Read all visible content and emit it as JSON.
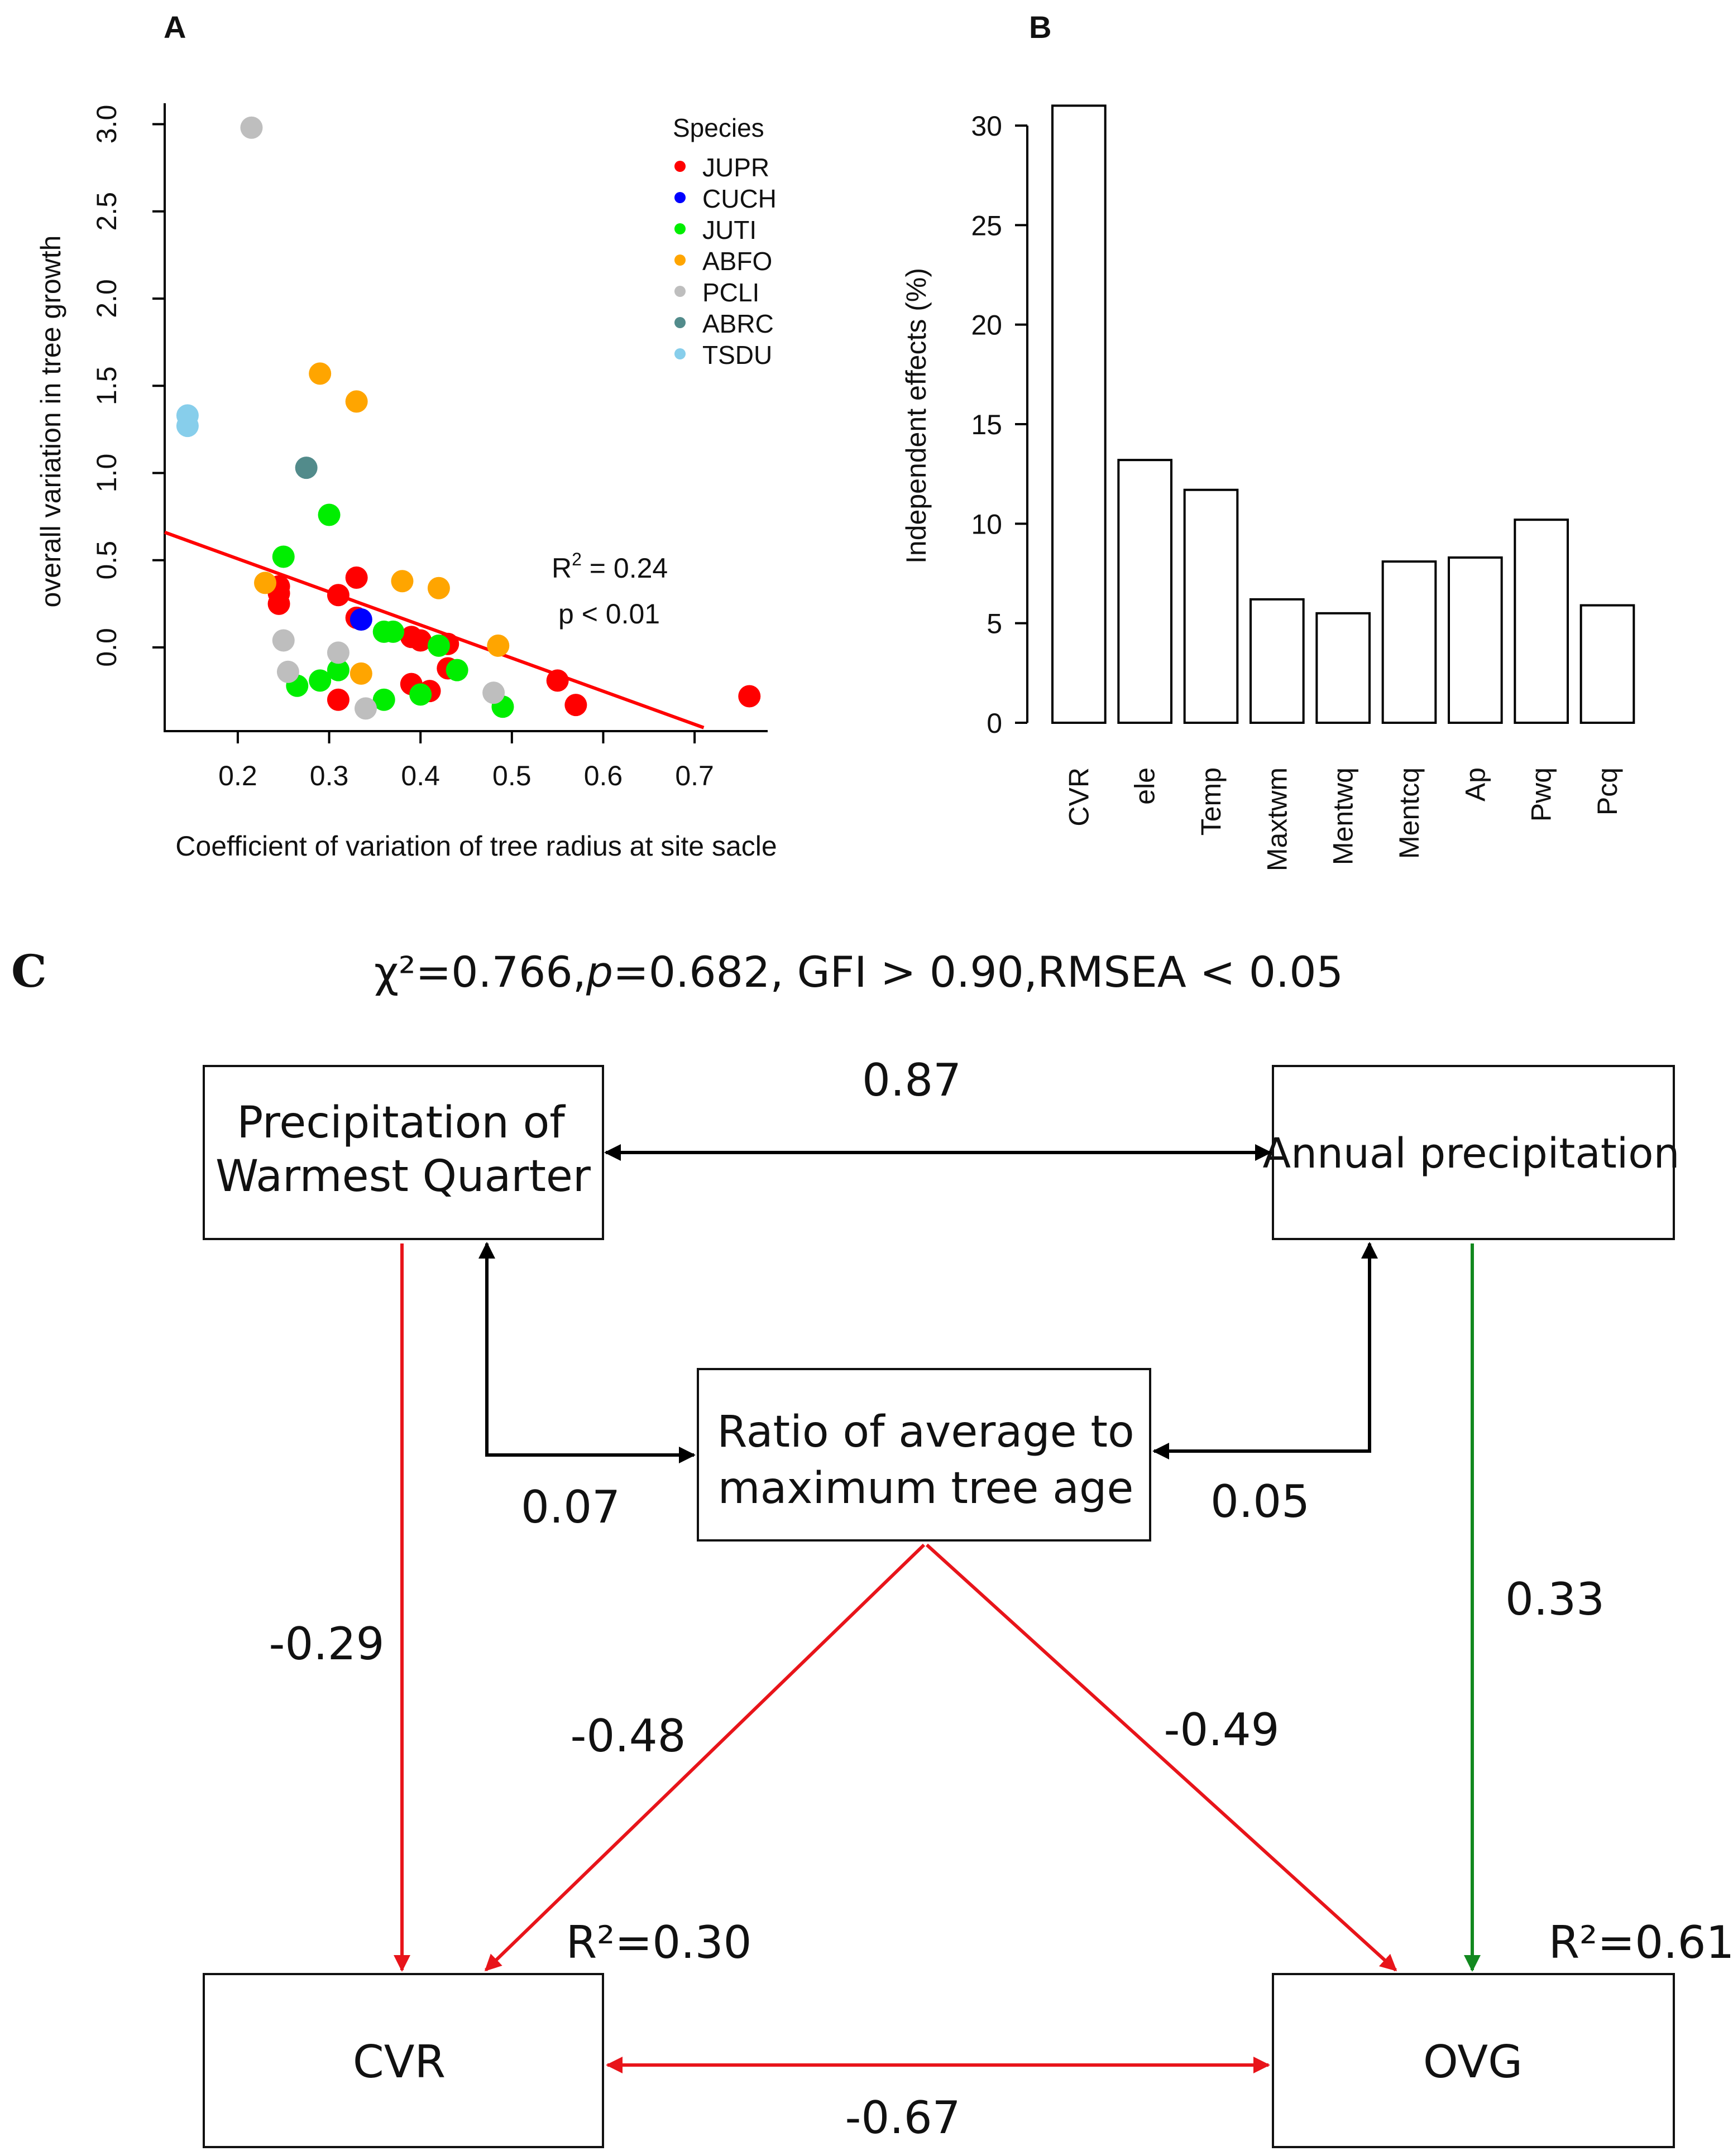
{
  "panel_labels": {
    "a": "A",
    "b": "B",
    "c": "C"
  },
  "chart_data": [
    {
      "type": "scatter",
      "panel": "A",
      "xlabel": "Coefficient of variation of tree radius at site sacle",
      "ylabel": "overall variation in tree growth",
      "xlim": [
        0.12,
        0.78
      ],
      "ylim": [
        -0.48,
        3.12
      ],
      "xticks": [
        0.2,
        0.3,
        0.4,
        0.5,
        0.6,
        0.7
      ],
      "yticks": [
        0.0,
        0.5,
        1.0,
        1.5,
        2.0,
        2.5,
        3.0
      ],
      "xtick_labels": [
        "0.2",
        "0.3",
        "0.4",
        "0.5",
        "0.6",
        "0.7"
      ],
      "ytick_labels": [
        "0.0",
        "0.5",
        "1.0",
        "1.5",
        "2.0",
        "2.5",
        "3.0"
      ],
      "legend_title": "Species",
      "legend_position": "top-right",
      "series": [
        {
          "name": "JUPR",
          "color": "#ff0000",
          "points": [
            [
              0.245,
              0.35
            ],
            [
              0.245,
              0.31
            ],
            [
              0.245,
              0.25
            ],
            [
              0.31,
              0.3
            ],
            [
              0.33,
              0.4
            ],
            [
              0.33,
              0.17
            ],
            [
              0.39,
              0.06
            ],
            [
              0.4,
              0.04
            ],
            [
              0.43,
              0.02
            ],
            [
              0.43,
              -0.12
            ],
            [
              0.39,
              -0.21
            ],
            [
              0.41,
              -0.25
            ],
            [
              0.31,
              -0.3
            ],
            [
              0.55,
              -0.19
            ],
            [
              0.57,
              -0.33
            ],
            [
              0.76,
              -0.28
            ]
          ]
        },
        {
          "name": "CUCH",
          "color": "#0000ff",
          "points": [
            [
              0.335,
              0.16
            ]
          ]
        },
        {
          "name": "JUTI",
          "color": "#00ee00",
          "points": [
            [
              0.25,
              0.52
            ],
            [
              0.3,
              0.76
            ],
            [
              0.36,
              0.09
            ],
            [
              0.37,
              0.09
            ],
            [
              0.42,
              0.01
            ],
            [
              0.44,
              -0.13
            ],
            [
              0.31,
              -0.13
            ],
            [
              0.29,
              -0.19
            ],
            [
              0.265,
              -0.22
            ],
            [
              0.36,
              -0.3
            ],
            [
              0.4,
              -0.27
            ],
            [
              0.49,
              -0.34
            ]
          ]
        },
        {
          "name": "ABFO",
          "color": "#ffa500",
          "points": [
            [
              0.29,
              1.57
            ],
            [
              0.33,
              1.41
            ],
            [
              0.23,
              0.37
            ],
            [
              0.38,
              0.38
            ],
            [
              0.42,
              0.34
            ],
            [
              0.485,
              0.01
            ],
            [
              0.335,
              -0.15
            ]
          ]
        },
        {
          "name": "PCLI",
          "color": "#bebebe",
          "points": [
            [
              0.215,
              2.98
            ],
            [
              0.25,
              0.04
            ],
            [
              0.255,
              -0.14
            ],
            [
              0.31,
              -0.03
            ],
            [
              0.34,
              -0.35
            ],
            [
              0.48,
              -0.26
            ]
          ]
        },
        {
          "name": "ABRC",
          "color": "#528b8b",
          "points": [
            [
              0.275,
              1.03
            ]
          ]
        },
        {
          "name": "TSDU",
          "color": "#87ceeb",
          "points": [
            [
              0.145,
              1.33
            ],
            [
              0.145,
              1.27
            ]
          ]
        }
      ],
      "fit_line": {
        "color": "#ff0000",
        "x0": 0.12,
        "y0": 0.66,
        "x1": 0.71,
        "y1": -0.46
      },
      "annotation_r2_prefix": "R",
      "annotation_r2_sup": "2",
      "annotation_r2_value": " = 0.24",
      "annotation_p": "p < 0.01"
    },
    {
      "type": "bar",
      "panel": "B",
      "ylabel": "Independent effects (%)",
      "ylim": [
        0,
        31
      ],
      "yticks": [
        0,
        5,
        10,
        15,
        20,
        25,
        30
      ],
      "ytick_labels": [
        "0",
        "5",
        "10",
        "15",
        "20",
        "25",
        "30"
      ],
      "categories": [
        "CVR",
        "ele",
        "Temp",
        "Maxtwm",
        "Mentwq",
        "Mentcq",
        "Ap",
        "Pwq",
        "Pcq"
      ],
      "values": [
        31.0,
        13.2,
        11.7,
        6.2,
        5.5,
        8.1,
        8.3,
        10.2,
        5.9
      ]
    }
  ],
  "sem": {
    "fit_stats": {
      "prefix": "χ²=0.766,",
      "p_italic": "p",
      "suffix": "=0.682, GFI > 0.90,RMSEA < 0.05"
    },
    "boxes": {
      "pwq_line1": "Precipitation of",
      "pwq_line2": "Warmest Quarter",
      "ap": "Annual precipitation",
      "ratio_line1": "Ratio of average to",
      "ratio_line2": "maximum tree age",
      "cvr": "CVR",
      "ovg": "OVG"
    },
    "coefficients": {
      "pwq_ap": "0.87",
      "pwq_ratio": "0.07",
      "ratio_ap": "0.05",
      "pwq_cvr": "-0.29",
      "ap_ovg": "0.33",
      "ratio_cvr": "-0.48",
      "ratio_ovg": "-0.49",
      "cvr_ovg": "-0.67"
    },
    "r2": {
      "cvr": "R²=0.30",
      "ovg": "R²=0.61"
    },
    "colors": {
      "negative": "#e8141a",
      "positive": "#12891f",
      "correlation": "#000000"
    }
  }
}
